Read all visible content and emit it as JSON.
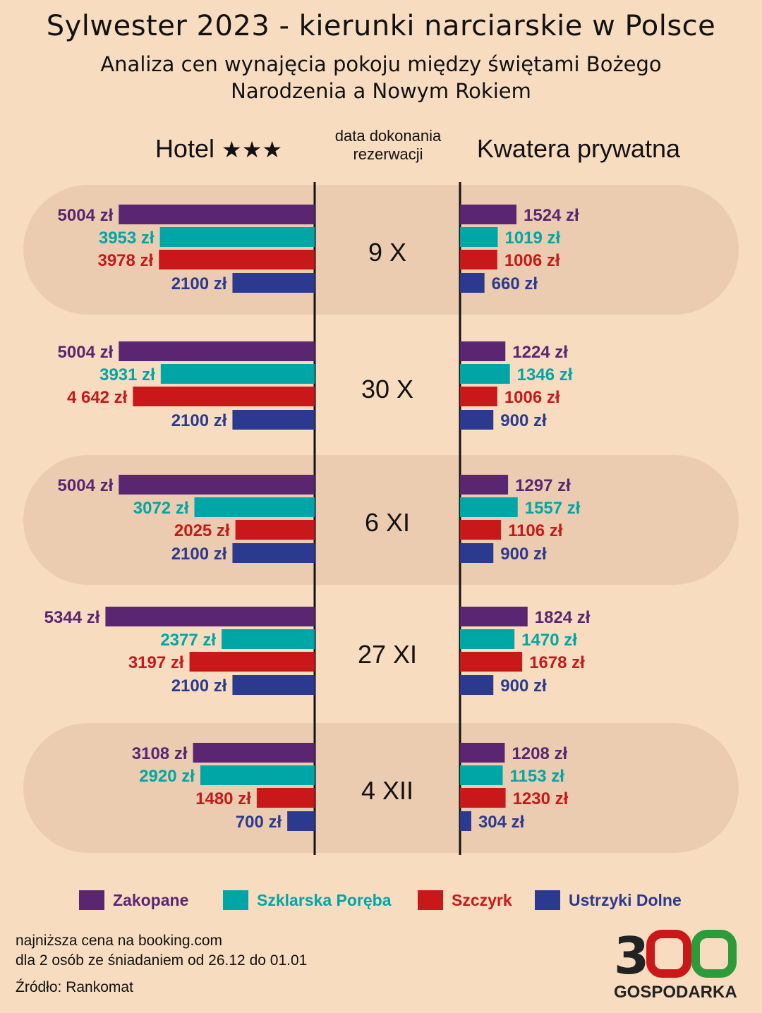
{
  "title": "Sylwester 2023 - kierunki narciarskie w Polsce",
  "subtitle_line1": "Analiza cen wynajęcia pokoju między świętami Bożego",
  "subtitle_line2": "Narodzenia a Nowym Rokiem",
  "headers": {
    "hotel": "Hotel",
    "hotel_stars": "★★★",
    "date_line1": "data dokonania",
    "date_line2": "rezerwacji",
    "private": "Kwatera prywatna"
  },
  "colors": {
    "Zakopane": "#5a2672",
    "Szklarska Poręba": "#00a6a6",
    "Szczyrk": "#c8181a",
    "Ustrzyki Dolne": "#2b3a8f",
    "band": "#ecccb0",
    "background": "#f8dcc0"
  },
  "chart_data": {
    "type": "bar",
    "series_names": [
      "Zakopane",
      "Szklarska Poręba",
      "Szczyrk",
      "Ustrzyki Dolne"
    ],
    "groups": [
      {
        "date": "9 X",
        "hotel": [
          5004,
          3953,
          3978,
          2100
        ],
        "hotel_labels": [
          "5004 zł",
          "3953 zł",
          "3978 zł",
          "2100 zł"
        ],
        "private": [
          1524,
          1019,
          1006,
          660
        ],
        "private_labels": [
          "1524 zł",
          "1019 zł",
          "1006 zł",
          "660 zł"
        ]
      },
      {
        "date": "30 X",
        "hotel": [
          5004,
          3931,
          4642,
          2100
        ],
        "hotel_labels": [
          "5004 zł",
          "3931 zł",
          "4 642 zł",
          "2100 zł"
        ],
        "private": [
          1224,
          1346,
          1006,
          900
        ],
        "private_labels": [
          "1224 zł",
          "1346 zł",
          "1006 zł",
          "900 zł"
        ]
      },
      {
        "date": "6 XI",
        "hotel": [
          5004,
          3072,
          2025,
          2100
        ],
        "hotel_labels": [
          "5004 zł",
          "3072 zł",
          "2025 zł",
          "2100 zł"
        ],
        "private": [
          1297,
          1557,
          1106,
          900
        ],
        "private_labels": [
          "1297 zł",
          "1557 zł",
          "1106 zł",
          "900 zł"
        ]
      },
      {
        "date": "27 XI",
        "hotel": [
          5344,
          2377,
          3197,
          2100
        ],
        "hotel_labels": [
          "5344 zł",
          "2377 zł",
          "3197 zł",
          "2100 zł"
        ],
        "private": [
          1824,
          1470,
          1678,
          900
        ],
        "private_labels": [
          "1824 zł",
          "1470 zł",
          "1678 zł",
          "900 zł"
        ]
      },
      {
        "date": "4 XII",
        "hotel": [
          3108,
          2920,
          1480,
          700
        ],
        "hotel_labels": [
          "3108 zł",
          "2920 zł",
          "1480 zł",
          "700 zł"
        ],
        "private": [
          1208,
          1153,
          1230,
          304
        ],
        "private_labels": [
          "1208 zł",
          "1153 zł",
          "1230 zł",
          "304 zł"
        ]
      }
    ]
  },
  "legend": [
    "Zakopane",
    "Szklarska Poręba",
    "Szczyrk",
    "Ustrzyki Dolne"
  ],
  "notes": {
    "line1": "najniższa cena na booking.com",
    "line2": "dla 2 osób ze śniadaniem od 26.12 do 01.01",
    "source": "Źródło: Rankomat"
  },
  "logo": {
    "number": "300",
    "text": "GOSPODARKA"
  }
}
